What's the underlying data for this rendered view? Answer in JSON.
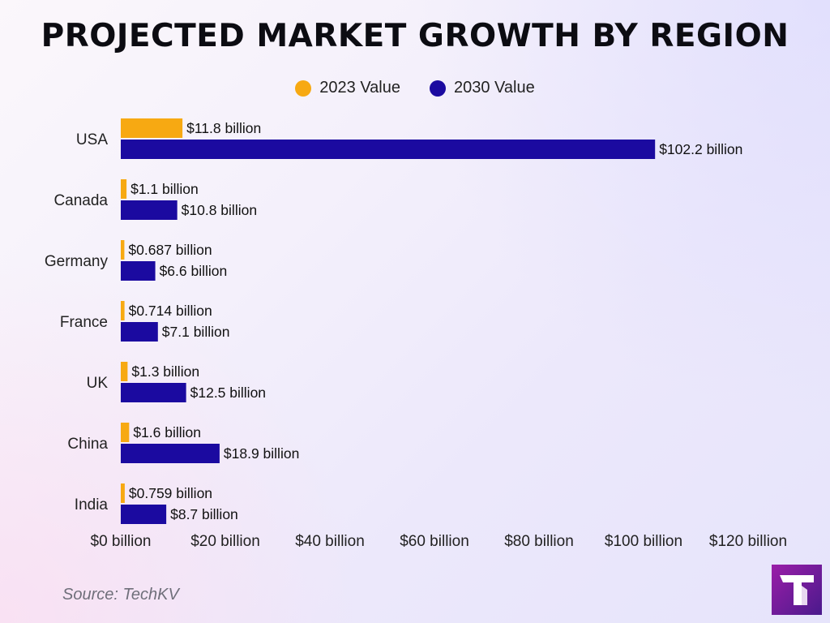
{
  "title": "PROJECTED MARKET GROWTH BY REGION",
  "source": "Source: TechKV",
  "logo_icon": "techkv-logo",
  "chart_data": {
    "type": "bar",
    "orientation": "horizontal",
    "categories": [
      "USA",
      "Canada",
      "Germany",
      "France",
      "UK",
      "China",
      "India"
    ],
    "series": [
      {
        "name": "2023 Value",
        "color": "#f7a912",
        "values": [
          11.8,
          1.1,
          0.687,
          0.714,
          1.3,
          1.6,
          0.759
        ],
        "labels": [
          "$11.8 billion",
          "$1.1 billion",
          "$0.687 billion",
          "$0.714 billion",
          "$1.3 billion",
          "$1.6 billion",
          "$0.759 billion"
        ]
      },
      {
        "name": "2030 Value",
        "color": "#1b0aa0",
        "values": [
          102.2,
          10.8,
          6.6,
          7.1,
          12.5,
          18.9,
          8.7
        ],
        "labels": [
          "$102.2 billion",
          "$10.8 billion",
          "$6.6 billion",
          "$7.1 billion",
          "$12.5 billion",
          "$18.9 billion",
          "$8.7 billion"
        ]
      }
    ],
    "xlim": [
      0,
      120
    ],
    "xticks": [
      0,
      20,
      40,
      60,
      80,
      100,
      120
    ],
    "xtick_labels": [
      "$0 billion",
      "$20 billion",
      "$40 billion",
      "$60 billion",
      "$80 billion",
      "$100 billion",
      "$120 billion"
    ],
    "grid": false,
    "legend_position": "top-center"
  }
}
